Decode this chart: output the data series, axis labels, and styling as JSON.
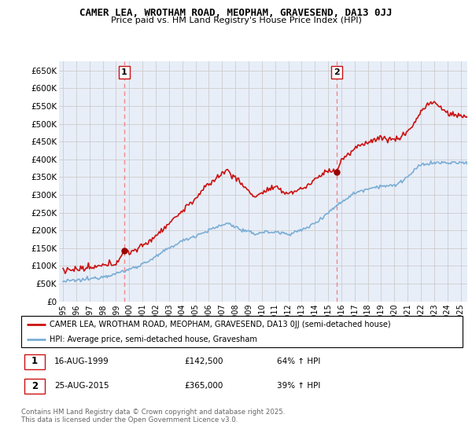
{
  "title": "CAMER LEA, WROTHAM ROAD, MEOPHAM, GRAVESEND, DA13 0JJ",
  "subtitle": "Price paid vs. HM Land Registry's House Price Index (HPI)",
  "ylabel_ticks": [
    "£0",
    "£50K",
    "£100K",
    "£150K",
    "£200K",
    "£250K",
    "£300K",
    "£350K",
    "£400K",
    "£450K",
    "£500K",
    "£550K",
    "£600K",
    "£650K"
  ],
  "ytick_values": [
    0,
    50000,
    100000,
    150000,
    200000,
    250000,
    300000,
    350000,
    400000,
    450000,
    500000,
    550000,
    600000,
    650000
  ],
  "ylim": [
    0,
    675000
  ],
  "xlim_start": 1994.7,
  "xlim_end": 2025.5,
  "xtick_years": [
    1995,
    1996,
    1997,
    1998,
    1999,
    2000,
    2001,
    2002,
    2003,
    2004,
    2005,
    2006,
    2007,
    2008,
    2009,
    2010,
    2011,
    2012,
    2013,
    2014,
    2015,
    2016,
    2017,
    2018,
    2019,
    2020,
    2021,
    2022,
    2023,
    2024,
    2025
  ],
  "hpi_color": "#7aaed6",
  "price_color": "#cc1111",
  "marker_color": "#990000",
  "vline_color": "#ee8888",
  "grid_color": "#cccccc",
  "plot_bg_color": "#e8eef8",
  "transaction1": {
    "date_decimal": 1999.625,
    "price": 142500,
    "label": "1"
  },
  "transaction2": {
    "date_decimal": 2015.645,
    "price": 365000,
    "label": "2"
  },
  "legend_entries": [
    "CAMER LEA, WROTHAM ROAD, MEOPHAM, GRAVESEND, DA13 0JJ (semi-detached house)",
    "HPI: Average price, semi-detached house, Gravesham"
  ],
  "table_data": [
    {
      "num": "1",
      "date": "16-AUG-1999",
      "price": "£142,500",
      "change": "64% ↑ HPI"
    },
    {
      "num": "2",
      "date": "25-AUG-2015",
      "price": "£365,000",
      "change": "39% ↑ HPI"
    }
  ],
  "footnote": "Contains HM Land Registry data © Crown copyright and database right 2025.\nThis data is licensed under the Open Government Licence v3.0.",
  "background_color": "#ffffff"
}
